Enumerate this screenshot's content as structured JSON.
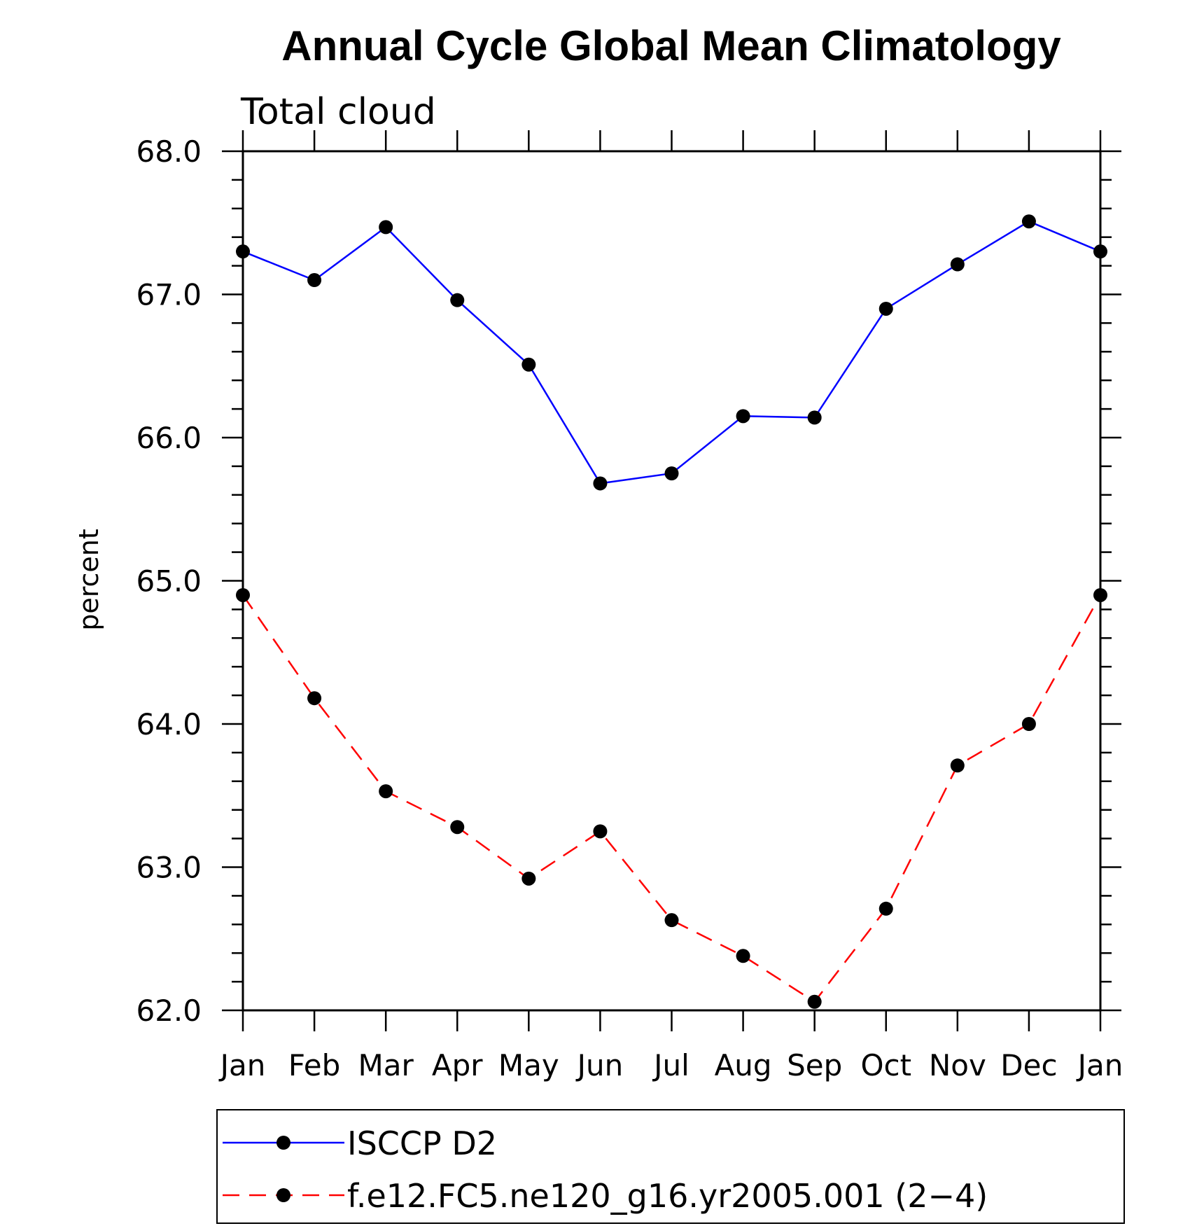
{
  "chart_data": {
    "type": "line",
    "title": "Annual Cycle Global Mean Climatology",
    "subtitle": "Total cloud",
    "ylabel": "percent",
    "xlabel": "",
    "categories": [
      "Jan",
      "Feb",
      "Mar",
      "Apr",
      "May",
      "Jun",
      "Jul",
      "Aug",
      "Sep",
      "Oct",
      "Nov",
      "Dec",
      "Jan"
    ],
    "ylim": [
      62.0,
      68.0
    ],
    "yticks": [
      "62.0",
      "63.0",
      "64.0",
      "65.0",
      "66.0",
      "67.0",
      "68.0"
    ],
    "grid": false,
    "legend_position": "bottom",
    "series": [
      {
        "name": "ISCCP D2",
        "color": "#0000ff",
        "dash": "solid",
        "marker": "filled-circle",
        "values": [
          67.3,
          67.1,
          67.47,
          66.96,
          66.51,
          65.68,
          65.75,
          66.15,
          66.14,
          66.9,
          67.21,
          67.51,
          67.3
        ]
      },
      {
        "name": "f.e12.FC5.ne120_g16.yr2005.001 (2−4)",
        "color": "#ff0000",
        "dash": "dashed",
        "marker": "filled-circle",
        "values": [
          64.9,
          64.18,
          63.53,
          63.28,
          62.92,
          63.25,
          62.63,
          62.38,
          62.06,
          62.71,
          63.71,
          64.0,
          64.9
        ]
      }
    ]
  }
}
